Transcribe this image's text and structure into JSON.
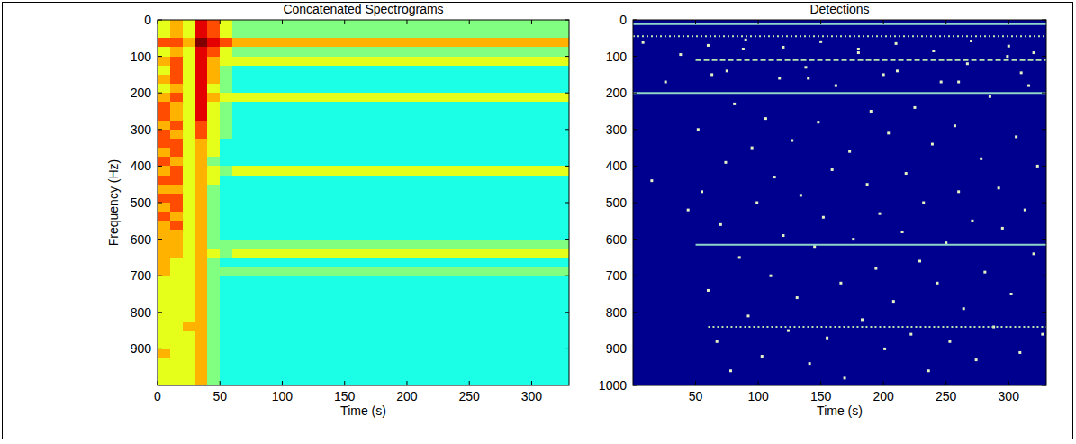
{
  "chart_data": [
    {
      "type": "heatmap",
      "title": "Concatenated Spectrograms",
      "x_label": "Time (s)",
      "y_label": "Frequency (Hz)",
      "xlim": [
        0,
        330
      ],
      "ylim": [
        0,
        1000
      ],
      "xticks": [
        0,
        50,
        100,
        150,
        200,
        250,
        300
      ],
      "yticks": [
        0,
        100,
        200,
        300,
        400,
        500,
        600,
        700,
        800,
        900
      ],
      "x_edges": [
        0,
        10,
        20,
        30,
        40,
        50,
        60,
        90,
        120,
        150,
        180,
        210,
        240,
        270,
        300,
        330
      ],
      "y_edges": [
        0,
        25,
        50,
        75,
        100,
        125,
        150,
        175,
        200,
        225,
        250,
        275,
        300,
        325,
        350,
        375,
        400,
        425,
        450,
        475,
        500,
        525,
        550,
        575,
        600,
        625,
        650,
        675,
        700,
        725,
        750,
        775,
        800,
        825,
        850,
        875,
        900,
        925,
        950,
        975,
        1000
      ],
      "clim": [
        0,
        10
      ],
      "z": [
        [
          6,
          7,
          6,
          9,
          8,
          6,
          5,
          5,
          5,
          5,
          5,
          5,
          5,
          5,
          5
        ],
        [
          6,
          7,
          6,
          9,
          8,
          6,
          5,
          5,
          5,
          5,
          5,
          5,
          5,
          5,
          5
        ],
        [
          8,
          8,
          7,
          10,
          9,
          8,
          7,
          7,
          7,
          7,
          7,
          7,
          7,
          7,
          7
        ],
        [
          6,
          7,
          6,
          9,
          8,
          6,
          5,
          5,
          5,
          5,
          5,
          5,
          5,
          5,
          5
        ],
        [
          7,
          8,
          6,
          9,
          7,
          6,
          6,
          6,
          6,
          6,
          6,
          6,
          6,
          6,
          6
        ],
        [
          6,
          8,
          6,
          9,
          7,
          5,
          4,
          4,
          4,
          4,
          4,
          4,
          4,
          4,
          4
        ],
        [
          7,
          8,
          6,
          9,
          7,
          5,
          4,
          4,
          4,
          4,
          4,
          4,
          4,
          4,
          4
        ],
        [
          6,
          7,
          6,
          9,
          6,
          5,
          4,
          4,
          4,
          4,
          4,
          4,
          4,
          4,
          4
        ],
        [
          7,
          8,
          6,
          9,
          7,
          6,
          6,
          6,
          6,
          6,
          6,
          6,
          6,
          6,
          6
        ],
        [
          8,
          7,
          6,
          9,
          6,
          5,
          4,
          4,
          4,
          4,
          4,
          4,
          4,
          4,
          4
        ],
        [
          8,
          7,
          6,
          9,
          6,
          5,
          4,
          4,
          4,
          4,
          4,
          4,
          4,
          4,
          4
        ],
        [
          7,
          8,
          6,
          8,
          6,
          5,
          4,
          4,
          4,
          4,
          4,
          4,
          4,
          4,
          4
        ],
        [
          8,
          7,
          6,
          8,
          6,
          5,
          4,
          4,
          4,
          4,
          4,
          4,
          4,
          4,
          4
        ],
        [
          8,
          8,
          6,
          7,
          6,
          4,
          4,
          4,
          4,
          4,
          4,
          4,
          4,
          4,
          4
        ],
        [
          7,
          8,
          6,
          7,
          6,
          4,
          4,
          4,
          4,
          4,
          4,
          4,
          4,
          4,
          4
        ],
        [
          8,
          7,
          6,
          7,
          5,
          4,
          4,
          4,
          4,
          4,
          4,
          4,
          4,
          4,
          4
        ],
        [
          7,
          8,
          6,
          7,
          6,
          5,
          6,
          6,
          6,
          6,
          6,
          6,
          6,
          6,
          6
        ],
        [
          8,
          8,
          6,
          7,
          6,
          4,
          4,
          4,
          4,
          4,
          4,
          4,
          4,
          4,
          4
        ],
        [
          7,
          7,
          6,
          7,
          5,
          4,
          4,
          4,
          4,
          4,
          4,
          4,
          4,
          4,
          4
        ],
        [
          8,
          8,
          6,
          7,
          5,
          4,
          4,
          4,
          4,
          4,
          4,
          4,
          4,
          4,
          4
        ],
        [
          7,
          8,
          6,
          7,
          5,
          4,
          4,
          4,
          4,
          4,
          4,
          4,
          4,
          4,
          4
        ],
        [
          8,
          7,
          6,
          7,
          5,
          4,
          4,
          4,
          4,
          4,
          4,
          4,
          4,
          4,
          4
        ],
        [
          7,
          8,
          6,
          7,
          5,
          4,
          4,
          4,
          4,
          4,
          4,
          4,
          4,
          4,
          4
        ],
        [
          7,
          7,
          6,
          7,
          5,
          4,
          4,
          4,
          4,
          4,
          4,
          4,
          4,
          4,
          4
        ],
        [
          7,
          7,
          6,
          7,
          5,
          5,
          5,
          5,
          5,
          5,
          5,
          5,
          5,
          5,
          5
        ],
        [
          7,
          7,
          6,
          7,
          6,
          5,
          6,
          6,
          6,
          6,
          6,
          6,
          6,
          6,
          6
        ],
        [
          7,
          6,
          6,
          7,
          5,
          4,
          4,
          4,
          4,
          4,
          4,
          4,
          4,
          4,
          4
        ],
        [
          7,
          6,
          6,
          7,
          5,
          5,
          5,
          5,
          5,
          5,
          5,
          5,
          5,
          5,
          5
        ],
        [
          6,
          6,
          6,
          7,
          5,
          4,
          4,
          4,
          4,
          4,
          4,
          4,
          4,
          4,
          4
        ],
        [
          6,
          6,
          6,
          7,
          5,
          4,
          4,
          4,
          4,
          4,
          4,
          4,
          4,
          4,
          4
        ],
        [
          6,
          6,
          6,
          7,
          5,
          4,
          4,
          4,
          4,
          4,
          4,
          4,
          4,
          4,
          4
        ],
        [
          6,
          6,
          6,
          7,
          5,
          4,
          4,
          4,
          4,
          4,
          4,
          4,
          4,
          4,
          4
        ],
        [
          6,
          6,
          6,
          7,
          5,
          4,
          4,
          4,
          4,
          4,
          4,
          4,
          4,
          4,
          4
        ],
        [
          6,
          6,
          7,
          7,
          5,
          4,
          4,
          4,
          4,
          4,
          4,
          4,
          4,
          4,
          4
        ],
        [
          6,
          6,
          6,
          7,
          5,
          4,
          4,
          4,
          4,
          4,
          4,
          4,
          4,
          4,
          4
        ],
        [
          6,
          6,
          6,
          7,
          5,
          4,
          4,
          4,
          4,
          4,
          4,
          4,
          4,
          4,
          4
        ],
        [
          7,
          6,
          6,
          7,
          5,
          4,
          4,
          4,
          4,
          4,
          4,
          4,
          4,
          4,
          4
        ],
        [
          6,
          6,
          6,
          7,
          5,
          4,
          4,
          4,
          4,
          4,
          4,
          4,
          4,
          4,
          4
        ],
        [
          6,
          6,
          6,
          7,
          5,
          4,
          4,
          4,
          4,
          4,
          4,
          4,
          4,
          4,
          4
        ],
        [
          6,
          6,
          6,
          7,
          5,
          4,
          4,
          4,
          4,
          4,
          4,
          4,
          4,
          4,
          4
        ]
      ]
    },
    {
      "type": "scatter",
      "title": "Detections",
      "x_label": "Time (s)",
      "xlim": [
        0,
        330
      ],
      "ylim": [
        0,
        1000
      ],
      "xticks": [
        50,
        100,
        150,
        200,
        250,
        300
      ],
      "yticks": [
        0,
        100,
        200,
        300,
        400,
        500,
        600,
        700,
        800,
        900,
        1000
      ],
      "series": [
        {
          "type": "scatter",
          "marker": "square",
          "color": "#e6f2c4",
          "x": [
            8,
            15,
            26,
            38,
            44,
            52,
            55,
            60,
            63,
            67,
            70,
            74,
            78,
            81,
            85,
            88,
            92,
            95,
            99,
            103,
            106,
            110,
            113,
            117,
            120,
            124,
            127,
            131,
            134,
            138,
            141,
            145,
            148,
            152,
            155,
            159,
            162,
            166,
            169,
            173,
            176,
            180,
            183,
            187,
            190,
            194,
            197,
            201,
            204,
            208,
            211,
            215,
            218,
            222,
            225,
            229,
            232,
            236,
            239,
            243,
            246,
            250,
            253,
            257,
            260,
            264,
            267,
            271,
            274,
            278,
            281,
            285,
            288,
            292,
            295,
            299,
            302,
            306,
            309,
            313,
            316,
            320,
            323,
            327,
            60,
            90,
            120,
            150,
            180,
            210,
            240,
            270,
            300,
            320,
            75,
            140,
            200,
            260,
            310
          ],
          "values": [
            62,
            440,
            170,
            95,
            520,
            300,
            470,
            740,
            150,
            880,
            560,
            390,
            960,
            230,
            650,
            80,
            810,
            350,
            500,
            920,
            270,
            700,
            430,
            160,
            590,
            850,
            330,
            760,
            480,
            130,
            940,
            620,
            280,
            540,
            870,
            410,
            180,
            720,
            980,
            360,
            600,
            90,
            820,
            450,
            250,
            680,
            530,
            900,
            310,
            770,
            140,
            580,
            420,
            860,
            240,
            660,
            500,
            960,
            340,
            720,
            170,
            610,
            880,
            290,
            470,
            790,
            120,
            550,
            930,
            380,
            690,
            210,
            840,
            460,
            570,
            100,
            750,
            320,
            910,
            520,
            180,
            640,
            400,
            860,
            70,
            55,
            75,
            60,
            80,
            65,
            85,
            58,
            72,
            90,
            140,
            160,
            150,
            170,
            145
          ]
        },
        {
          "type": "line",
          "line_style": "solid",
          "color": "#8fd6c8",
          "x": [
            0,
            330
          ],
          "values": [
            12,
            12
          ]
        },
        {
          "type": "line",
          "line_style": "dotted",
          "color": "#b8e6b0",
          "x": [
            0,
            330
          ],
          "values": [
            45,
            45
          ]
        },
        {
          "type": "line",
          "line_style": "dashed",
          "color": "#b8e6b0",
          "x": [
            50,
            330
          ],
          "values": [
            110,
            110
          ]
        },
        {
          "type": "line",
          "line_style": "solid",
          "color": "#8fd6c8",
          "x": [
            0,
            330
          ],
          "values": [
            200,
            200
          ]
        },
        {
          "type": "line",
          "line_style": "solid",
          "color": "#8fd6c8",
          "x": [
            50,
            330
          ],
          "values": [
            615,
            615
          ]
        },
        {
          "type": "line",
          "line_style": "dotted",
          "color": "#b8e6b0",
          "x": [
            60,
            330
          ],
          "values": [
            840,
            840
          ]
        }
      ]
    }
  ]
}
